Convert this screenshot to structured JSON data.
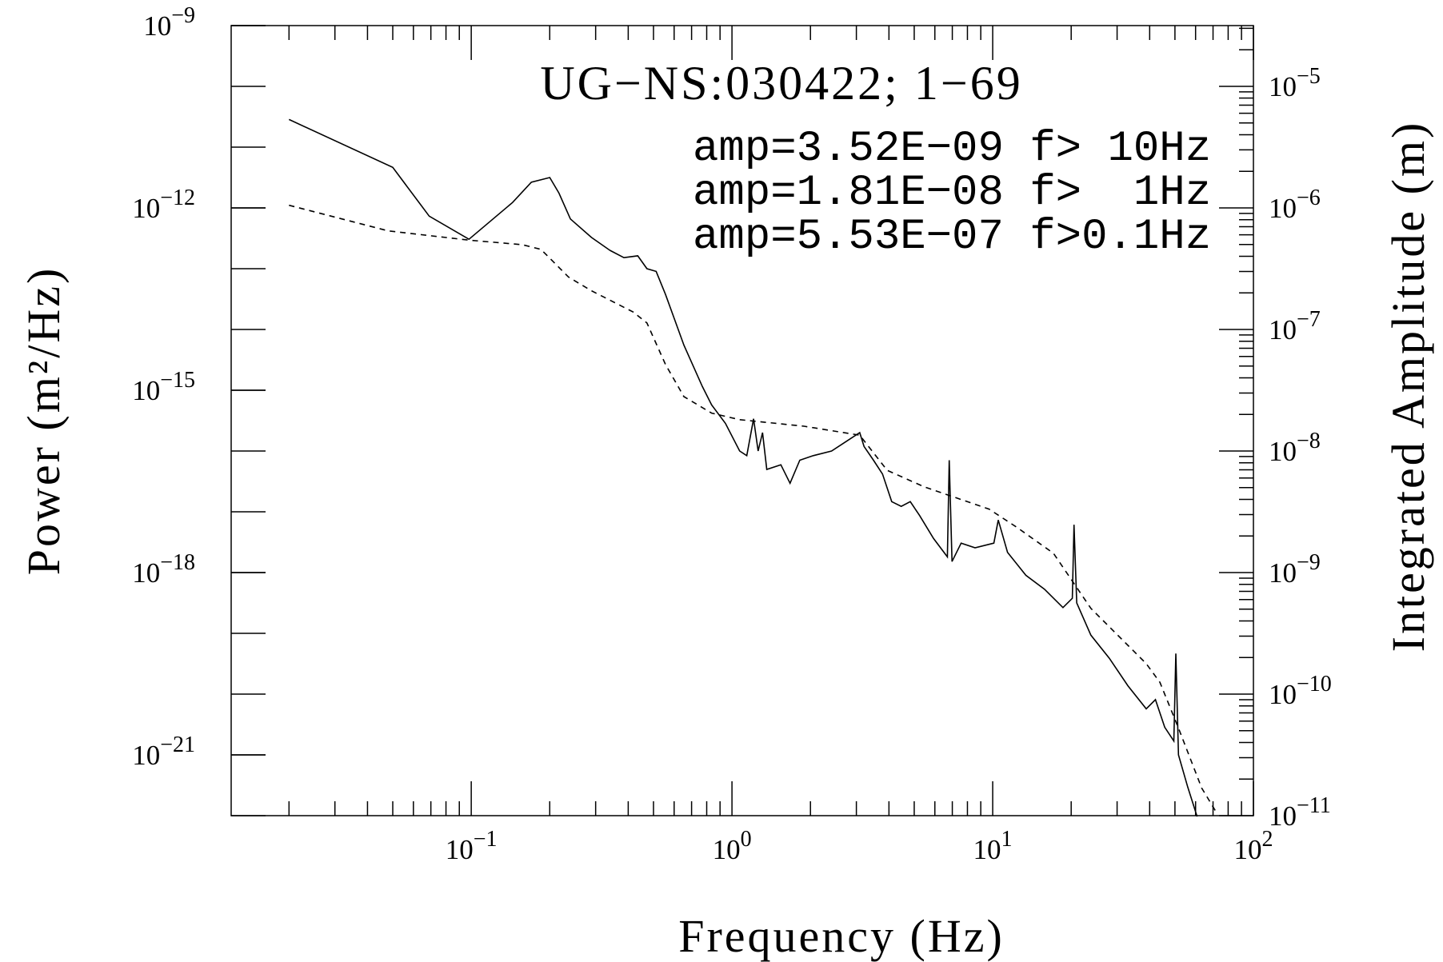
{
  "chart_data": {
    "type": "line",
    "title": "UG−NS:030422; 1−69",
    "annotations": [
      "amp=3.52E−09 f> 10Hz",
      "amp=1.81E−08 f>  1Hz",
      "amp=5.53E−07 f>0.1Hz"
    ],
    "x_label": "Frequency (Hz)",
    "y_label": "Power (m²/Hz)",
    "y2_label": "Integrated Amplitude (m)",
    "xscale": "log",
    "yscale": "log",
    "y2scale": "log",
    "xlim": [
      0.012,
      100
    ],
    "ylim": [
      1e-22,
      1e-09
    ],
    "y2lim": [
      1e-11,
      3.16e-05
    ],
    "xticks": [
      {
        "value": 0.1,
        "label": "10−1"
      },
      {
        "value": 1,
        "label": "100"
      },
      {
        "value": 10,
        "label": "101"
      },
      {
        "value": 100,
        "label": "102"
      }
    ],
    "yticks": [
      {
        "value": 1e-09,
        "label": "10−9"
      },
      {
        "value": 1e-12,
        "label": "10−12"
      },
      {
        "value": 1e-15,
        "label": "10−15"
      },
      {
        "value": 1e-18,
        "label": "10−18"
      },
      {
        "value": 1e-21,
        "label": "10−21"
      }
    ],
    "y2ticks": [
      {
        "value": 1e-05,
        "label": "10−5"
      },
      {
        "value": 1e-06,
        "label": "10−6"
      },
      {
        "value": 1e-07,
        "label": "10−7"
      },
      {
        "value": 1e-08,
        "label": "10−8"
      },
      {
        "value": 1e-09,
        "label": "10−9"
      },
      {
        "value": 1e-10,
        "label": "10−10"
      },
      {
        "value": 1e-11,
        "label": "10−11"
      }
    ],
    "series": [
      {
        "color": "#000000",
        "line_style": "solid",
        "axis": "y",
        "x": [
          0.02,
          0.05,
          0.069,
          0.098,
          0.144,
          0.17,
          0.2,
          0.217,
          0.24,
          0.289,
          0.34,
          0.385,
          0.435,
          0.472,
          0.512,
          0.556,
          0.654,
          0.77,
          0.836,
          0.944,
          1.07,
          1.14,
          1.21,
          1.26,
          1.31,
          1.36,
          1.54,
          1.67,
          1.82,
          2.05,
          2.41,
          2.73,
          3.09,
          3.21,
          3.49,
          3.78,
          4.1,
          4.46,
          4.83,
          5.24,
          5.93,
          6.7,
          6.81,
          6.98,
          7.57,
          8.56,
          10.1,
          10.5,
          11.4,
          13.4,
          15.8,
          18.6,
          20.2,
          20.5,
          21,
          23.8,
          28,
          33,
          38.8,
          42.1,
          45.7,
          49.5,
          50.4,
          51.6,
          56,
          60.8
        ],
        "values": [
          2.85e-11,
          4.64e-12,
          7.31e-13,
          3.05e-13,
          1.23e-12,
          2.65e-12,
          3.16e-12,
          1.75e-12,
          6.58e-13,
          3.27e-13,
          2.01e-13,
          1.52e-13,
          1.63e-13,
          1e-13,
          9.01e-14,
          3.77e-14,
          5.52e-15,
          1.15e-15,
          5.73e-16,
          2.85e-16,
          1e-16,
          8.4e-17,
          3.39e-16,
          1e-16,
          2.01e-16,
          4.98e-17,
          5.93e-17,
          2.95e-17,
          7.05e-17,
          8.4e-17,
          1e-16,
          1.42e-16,
          2.01e-16,
          1.19e-16,
          7.05e-17,
          4.18e-17,
          1.47e-17,
          1.23e-17,
          1.47e-17,
          8.69e-18,
          3.64e-18,
          1.81e-18,
          7.05e-17,
          1.52e-18,
          3.05e-18,
          2.56e-18,
          3.05e-18,
          7.31e-18,
          2.15e-18,
          9.01e-19,
          5.33e-19,
          2.65e-19,
          3.77e-19,
          6.14e-18,
          3.16e-19,
          9.33e-20,
          3.9e-20,
          1.37e-20,
          5.73e-21,
          8.11e-21,
          2.85e-21,
          1.69e-21,
          4.64e-20,
          1e-21,
          2.95e-22,
          9.66e-23
        ]
      },
      {
        "color": "#000000",
        "line_style": "dashed",
        "axis": "y2",
        "x": [
          0.02,
          0.048,
          0.098,
          0.157,
          0.185,
          0.209,
          0.236,
          0.289,
          0.418,
          0.472,
          0.556,
          0.654,
          0.836,
          1.07,
          1.89,
          3.09,
          3.94,
          5.46,
          9.68,
          12.4,
          17.1,
          23.8,
          38.8,
          43.8,
          51.6,
          63.3,
          71.6
        ],
        "values": [
          1.05e-06,
          6.47e-07,
          5.43e-07,
          4.98e-07,
          4.56e-07,
          3.51e-07,
          2.7e-07,
          2.08e-07,
          1.39e-07,
          1.13e-07,
          5.15e-08,
          2.8e-08,
          2.05e-08,
          1.81e-08,
          1.6e-08,
          1.35e-08,
          6.93e-09,
          5.07e-09,
          3.33e-09,
          2.35e-09,
          1.44e-09,
          5.07e-10,
          1.78e-10,
          1.25e-10,
          5.25e-11,
          1.69e-11,
          1.09e-11
        ]
      }
    ]
  }
}
